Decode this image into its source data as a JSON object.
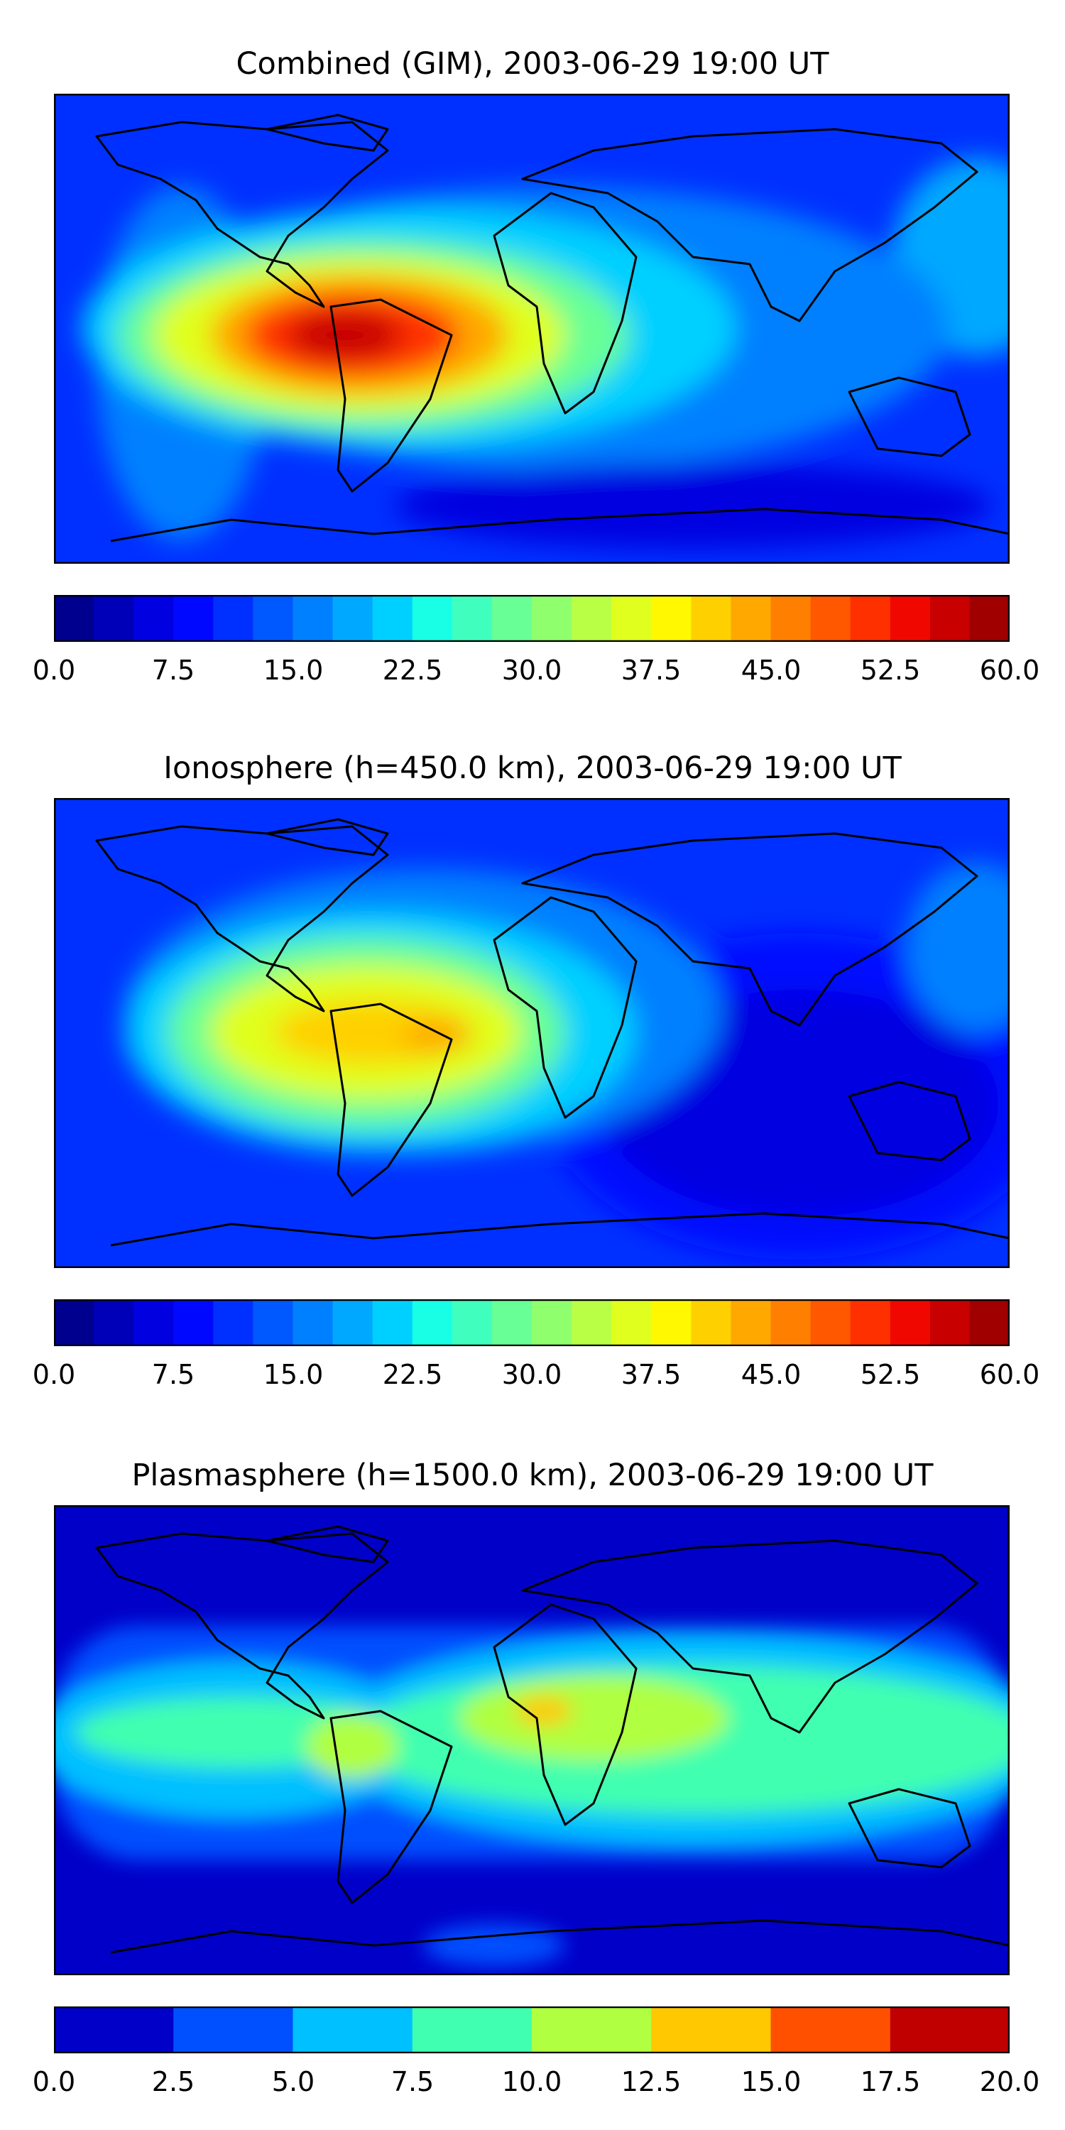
{
  "panels": [
    {
      "title": "Combined (GIM), 2003-06-29 19:00 UT",
      "colorbar": {
        "ticks": [
          "0.0",
          "7.5",
          "15.0",
          "22.5",
          "30.0",
          "37.5",
          "45.0",
          "52.5",
          "60.0"
        ],
        "range": [
          0,
          60
        ],
        "levels": 24
      }
    },
    {
      "title": "Ionosphere  (h=450.0 km), 2003-06-29 19:00 UT",
      "colorbar": {
        "ticks": [
          "0.0",
          "7.5",
          "15.0",
          "22.5",
          "30.0",
          "37.5",
          "45.0",
          "52.5",
          "60.0"
        ],
        "range": [
          0,
          60
        ],
        "levels": 24
      }
    },
    {
      "title": "Plasmasphere (h=1500.0 km), 2003-06-29 19:00 UT",
      "colorbar": {
        "ticks": [
          "0.0",
          "2.5",
          "5.0",
          "7.5",
          "10.0",
          "12.5",
          "15.0",
          "17.5",
          "20.0"
        ],
        "range": [
          0,
          20
        ],
        "levels": 8
      }
    }
  ],
  "colors": {
    "jet24": [
      "#00008f",
      "#0000b8",
      "#0000e0",
      "#0008ff",
      "#0030ff",
      "#0058ff",
      "#0080ff",
      "#00a8ff",
      "#00d0ff",
      "#18ffe6",
      "#40ffbe",
      "#68ff96",
      "#90ff6e",
      "#b8ff46",
      "#e0ff1e",
      "#fff800",
      "#ffd000",
      "#ffa800",
      "#ff8000",
      "#ff5800",
      "#ff3000",
      "#f00800",
      "#c80000",
      "#a00000"
    ],
    "jet8": [
      "#0000c8",
      "#0050ff",
      "#00c0ff",
      "#40ffb0",
      "#b0ff40",
      "#ffc800",
      "#ff5000",
      "#c00000"
    ]
  }
}
